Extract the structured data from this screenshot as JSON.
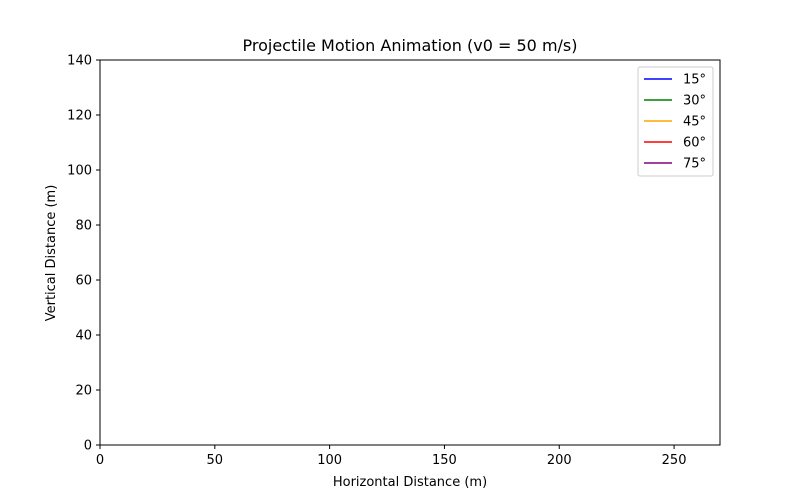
{
  "chart_data": {
    "type": "line",
    "title": "Projectile Motion Animation (v0 = 50 m/s)",
    "xlabel": "Horizontal Distance (m)",
    "ylabel": "Vertical Distance (m)",
    "xlim": [
      0,
      270
    ],
    "ylim": [
      0,
      140
    ],
    "x_ticks": [
      0,
      50,
      100,
      150,
      200,
      250
    ],
    "y_ticks": [
      0,
      20,
      40,
      60,
      80,
      100,
      120,
      140
    ],
    "grid": false,
    "legend_position": "top-right",
    "series": [
      {
        "name": "15°",
        "color": "#0000ff",
        "x": [],
        "y": []
      },
      {
        "name": "30°",
        "color": "#008000",
        "x": [],
        "y": []
      },
      {
        "name": "45°",
        "color": "#ffa500",
        "x": [],
        "y": []
      },
      {
        "name": "60°",
        "color": "#ff0000",
        "x": [],
        "y": []
      },
      {
        "name": "75°",
        "color": "#800080",
        "x": [],
        "y": []
      }
    ]
  }
}
